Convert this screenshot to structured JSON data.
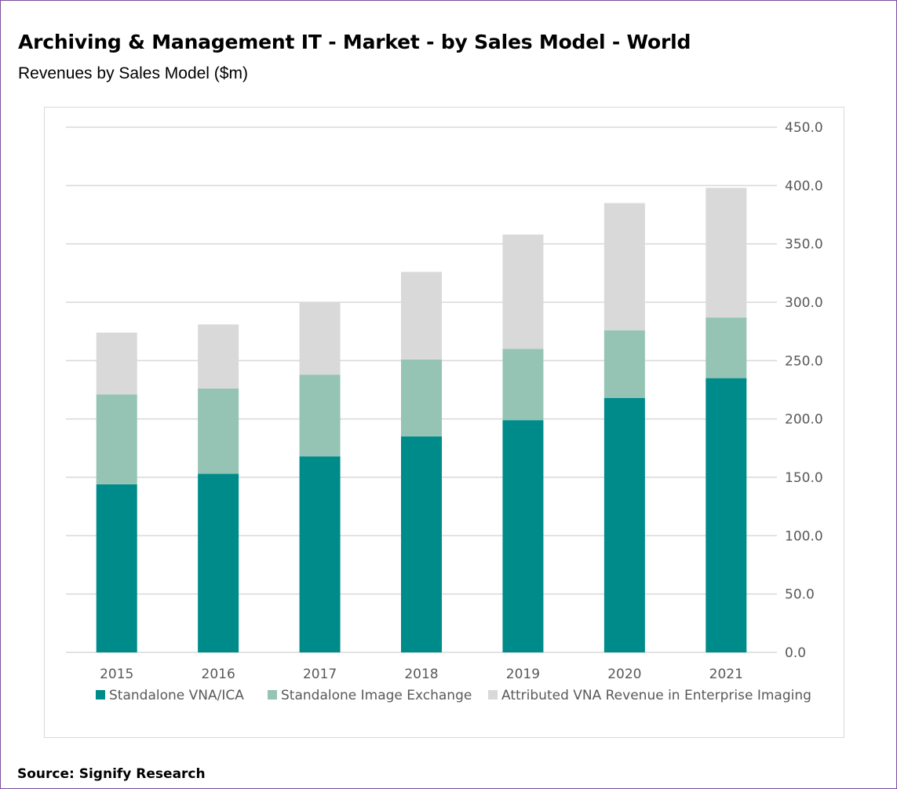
{
  "title": "Archiving & Management IT - Market - by Sales Model - World",
  "subtitle": "Revenues by Sales Model ($m)",
  "source": "Source: Signify Research",
  "colors": {
    "border": "#7b4f9d",
    "grid": "#d9d9d9",
    "axis_text": "#595959"
  },
  "chart_data": {
    "type": "bar",
    "stacked": true,
    "categories": [
      "2015",
      "2016",
      "2017",
      "2018",
      "2019",
      "2020",
      "2021"
    ],
    "series": [
      {
        "name": "Standalone VNA/ICA",
        "color": "#008b8b",
        "values": [
          144,
          153,
          168,
          185,
          199,
          218,
          235
        ]
      },
      {
        "name": "Standalone Image Exchange",
        "color": "#95c4b4",
        "values": [
          77,
          73,
          70,
          66,
          61,
          58,
          52
        ]
      },
      {
        "name": "Attributed VNA Revenue in Enterprise Imaging",
        "color": "#d9d9d9",
        "values": [
          53,
          55,
          62,
          75,
          98,
          109,
          111
        ]
      }
    ],
    "ylim": [
      0,
      450
    ],
    "yticks": [
      "0.0",
      "50.0",
      "100.0",
      "150.0",
      "200.0",
      "250.0",
      "300.0",
      "350.0",
      "400.0",
      "450.0"
    ],
    "yaxis_side": "right",
    "grid": true,
    "legend_position": "bottom",
    "xlabel": "",
    "ylabel": ""
  }
}
